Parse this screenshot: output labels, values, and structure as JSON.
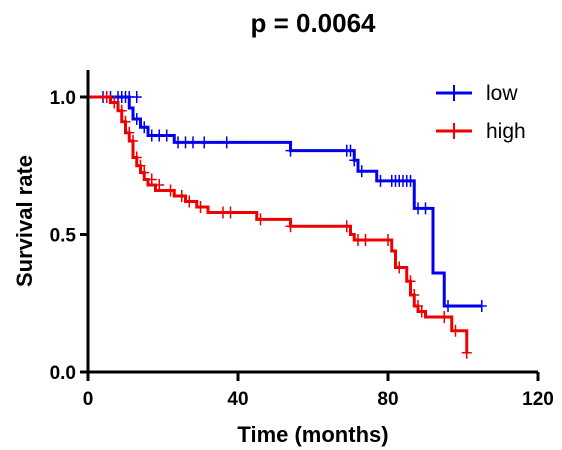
{
  "chart_data": {
    "type": "line",
    "subtype": "kaplan-meier",
    "title": "p = 0.0064",
    "xlabel": "Time (months)",
    "ylabel": "Survival rate",
    "xlim": [
      0,
      120
    ],
    "ylim": [
      0,
      1.1
    ],
    "x_ticks": [
      0,
      40,
      80,
      120
    ],
    "y_ticks": [
      0.0,
      0.5,
      1.0
    ],
    "x_tick_labels": [
      "0",
      "40",
      "80",
      "120"
    ],
    "y_tick_labels": [
      "0.0",
      "0.5",
      "1.0"
    ],
    "grid": false,
    "legend_position": "top-right",
    "series": [
      {
        "name": "low",
        "color": "#0000ee",
        "steps": [
          [
            0,
            1.0
          ],
          [
            11,
            0.96
          ],
          [
            12,
            0.92
          ],
          [
            14,
            0.89
          ],
          [
            16,
            0.86
          ],
          [
            23,
            0.835
          ],
          [
            54,
            0.805
          ],
          [
            71,
            0.77
          ],
          [
            72,
            0.73
          ],
          [
            77,
            0.695
          ],
          [
            87,
            0.595
          ],
          [
            92,
            0.36
          ],
          [
            95,
            0.24
          ],
          [
            105,
            0.24
          ]
        ],
        "censored": [
          [
            4,
            1.0
          ],
          [
            6,
            1.0
          ],
          [
            8,
            1.0
          ],
          [
            9,
            1.0
          ],
          [
            10,
            1.0
          ],
          [
            11,
            1.0
          ],
          [
            13,
            1.0
          ],
          [
            13,
            0.92
          ],
          [
            15,
            0.89
          ],
          [
            17,
            0.86
          ],
          [
            19,
            0.86
          ],
          [
            21,
            0.86
          ],
          [
            24,
            0.835
          ],
          [
            26,
            0.835
          ],
          [
            28,
            0.835
          ],
          [
            31,
            0.835
          ],
          [
            37,
            0.835
          ],
          [
            54,
            0.805
          ],
          [
            69,
            0.805
          ],
          [
            70,
            0.805
          ],
          [
            71,
            0.77
          ],
          [
            73,
            0.73
          ],
          [
            78,
            0.695
          ],
          [
            81,
            0.695
          ],
          [
            82,
            0.695
          ],
          [
            83,
            0.695
          ],
          [
            84,
            0.695
          ],
          [
            85,
            0.695
          ],
          [
            86,
            0.695
          ],
          [
            88,
            0.595
          ],
          [
            90,
            0.595
          ],
          [
            96,
            0.24
          ],
          [
            105,
            0.24
          ]
        ]
      },
      {
        "name": "high",
        "color": "#ee0000",
        "steps": [
          [
            0,
            1.0
          ],
          [
            6,
            0.98
          ],
          [
            8,
            0.95
          ],
          [
            9,
            0.91
          ],
          [
            10,
            0.87
          ],
          [
            11,
            0.84
          ],
          [
            12,
            0.78
          ],
          [
            13,
            0.75
          ],
          [
            14,
            0.725
          ],
          [
            15,
            0.7
          ],
          [
            16,
            0.68
          ],
          [
            18,
            0.66
          ],
          [
            23,
            0.64
          ],
          [
            26,
            0.62
          ],
          [
            29,
            0.6
          ],
          [
            32,
            0.58
          ],
          [
            45,
            0.555
          ],
          [
            54,
            0.53
          ],
          [
            70,
            0.5
          ],
          [
            71,
            0.48
          ],
          [
            81,
            0.44
          ],
          [
            82,
            0.38
          ],
          [
            85,
            0.33
          ],
          [
            86,
            0.28
          ],
          [
            87,
            0.24
          ],
          [
            88,
            0.22
          ],
          [
            90,
            0.2
          ],
          [
            97,
            0.15
          ],
          [
            101,
            0.07
          ]
        ],
        "censored": [
          [
            5,
            1.0
          ],
          [
            7,
            0.98
          ],
          [
            9,
            0.95
          ],
          [
            10,
            0.91
          ],
          [
            11,
            0.87
          ],
          [
            12,
            0.84
          ],
          [
            13,
            0.78
          ],
          [
            14,
            0.75
          ],
          [
            15,
            0.725
          ],
          [
            17,
            0.7
          ],
          [
            19,
            0.68
          ],
          [
            22,
            0.66
          ],
          [
            25,
            0.64
          ],
          [
            27,
            0.62
          ],
          [
            30,
            0.6
          ],
          [
            36,
            0.58
          ],
          [
            38,
            0.58
          ],
          [
            46,
            0.555
          ],
          [
            54,
            0.53
          ],
          [
            69,
            0.53
          ],
          [
            72,
            0.48
          ],
          [
            74,
            0.48
          ],
          [
            80,
            0.48
          ],
          [
            83,
            0.38
          ],
          [
            86,
            0.33
          ],
          [
            87,
            0.28
          ],
          [
            88,
            0.24
          ],
          [
            89,
            0.22
          ],
          [
            95,
            0.2
          ],
          [
            98,
            0.15
          ],
          [
            101,
            0.07
          ]
        ]
      }
    ]
  }
}
